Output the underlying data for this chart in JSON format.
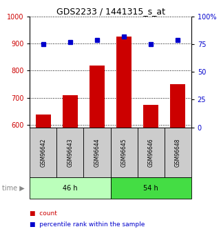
{
  "title": "GDS2233 / 1441315_s_at",
  "samples": [
    "GSM96642",
    "GSM96643",
    "GSM96644",
    "GSM96645",
    "GSM96646",
    "GSM96648"
  ],
  "count_values": [
    637,
    710,
    820,
    925,
    672,
    750
  ],
  "percentile_values": [
    75,
    77,
    79,
    82,
    75,
    79
  ],
  "groups": [
    {
      "label": "46 h",
      "indices": [
        0,
        1,
        2
      ],
      "color": "#bbffbb"
    },
    {
      "label": "54 h",
      "indices": [
        3,
        4,
        5
      ],
      "color": "#44dd44"
    }
  ],
  "ylim_left": [
    590,
    1000
  ],
  "ylim_right": [
    0,
    100
  ],
  "yticks_left": [
    600,
    700,
    800,
    900,
    1000
  ],
  "yticks_right": [
    0,
    25,
    50,
    75,
    100
  ],
  "bar_color": "#cc0000",
  "dot_color": "#0000cc",
  "sample_bg": "#cccccc",
  "title_fontsize": 9,
  "tick_fontsize": 7,
  "sample_fontsize": 5.5,
  "group_fontsize": 7,
  "legend_fontsize": 6.5,
  "time_fontsize": 7,
  "time_color": "#888888"
}
